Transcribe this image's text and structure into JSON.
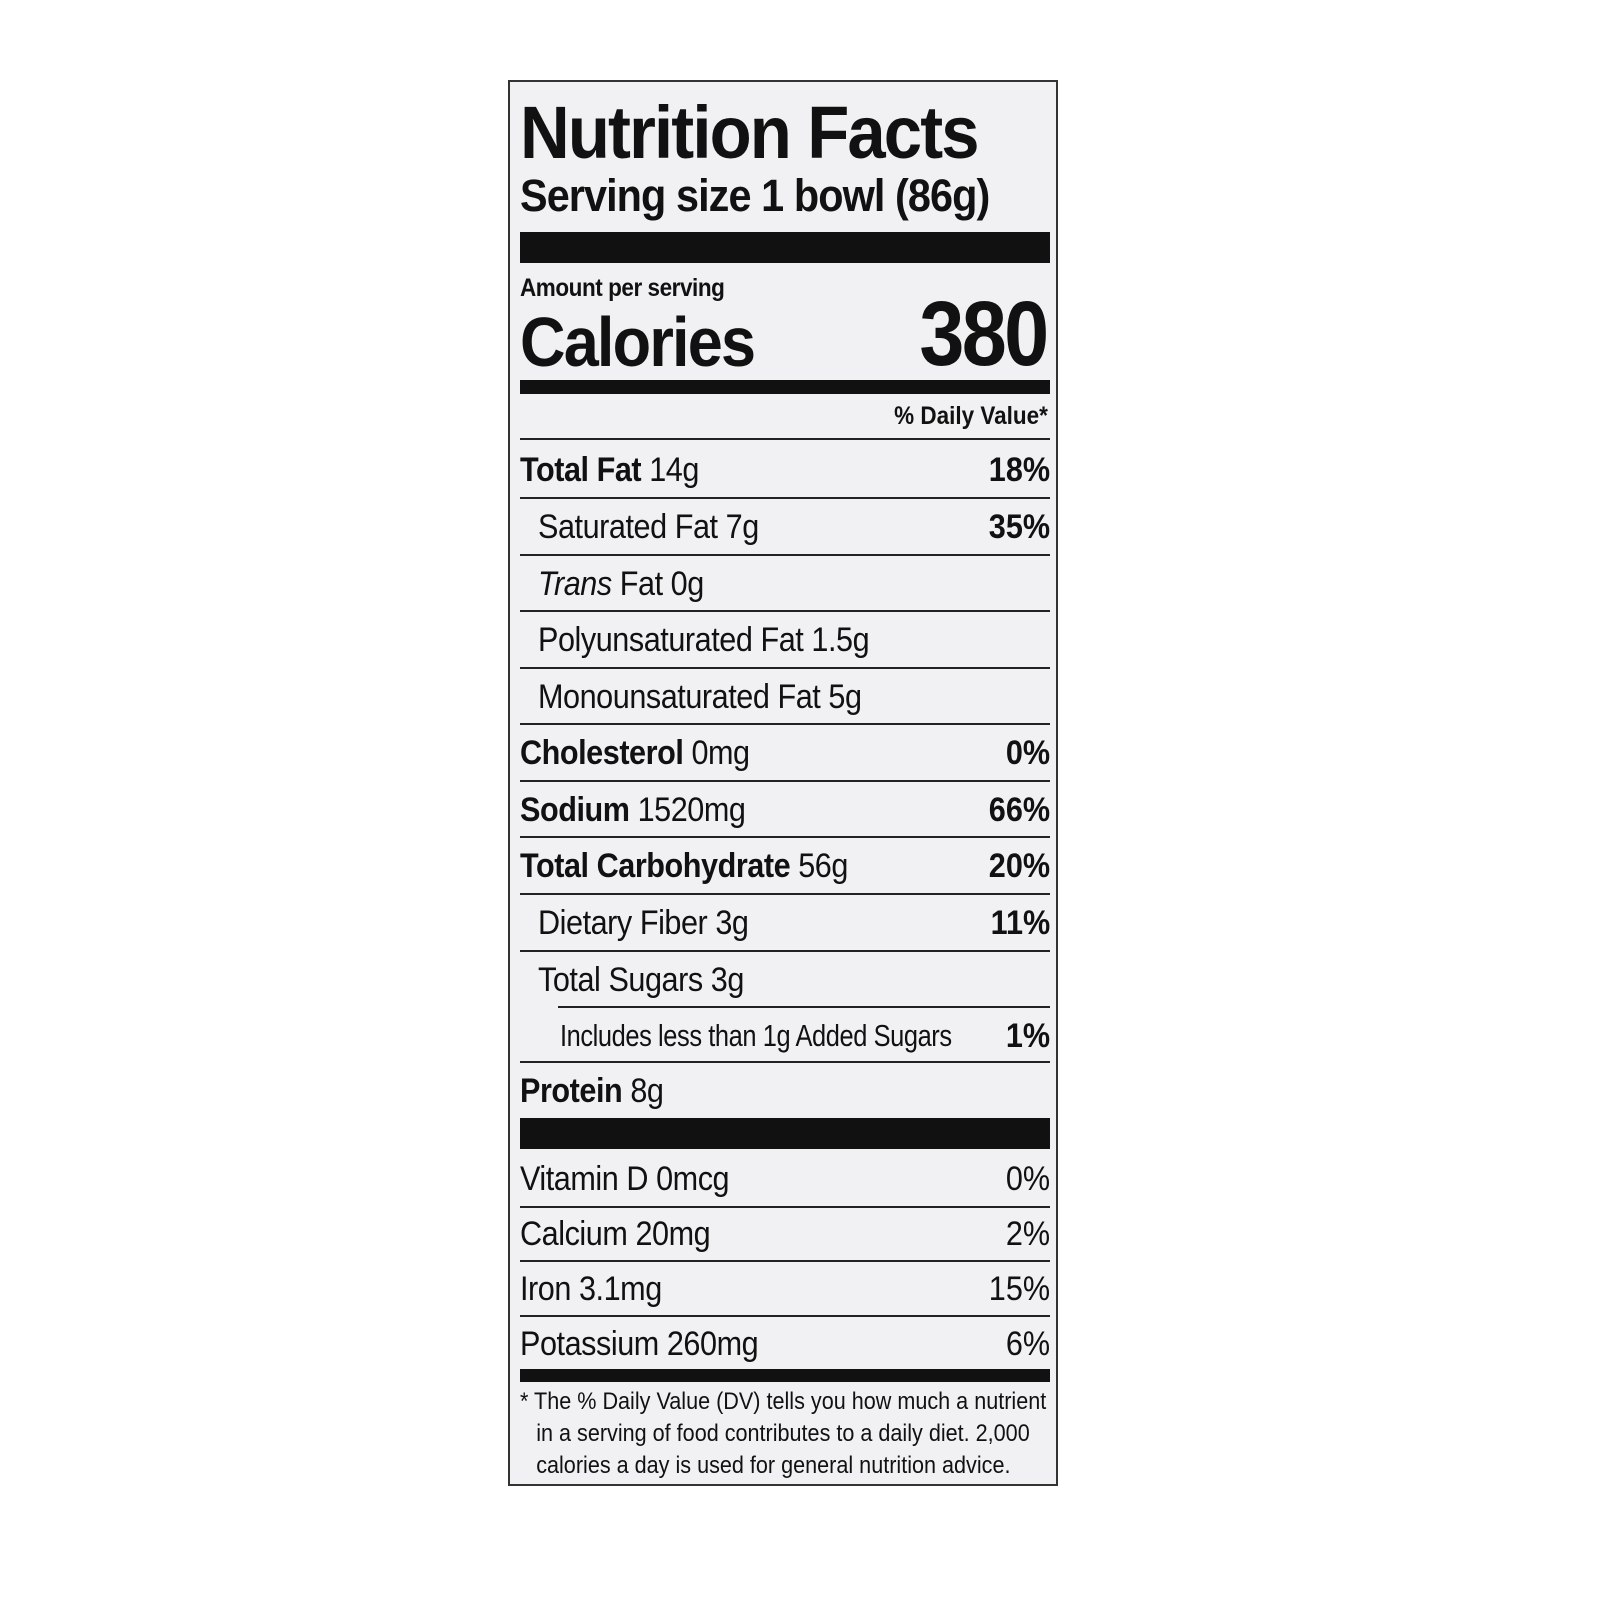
{
  "label": {
    "title": "Nutrition Facts",
    "serving_size": "Serving size 1 bowl (86g)",
    "amount_per_serving": "Amount per serving",
    "calories_label": "Calories",
    "calories_value": "380",
    "dv_header": "% Daily Value*",
    "nutrients": [
      {
        "name": "Total Fat",
        "amount": "14g",
        "dv": "18%"
      },
      {
        "name": "Saturated Fat",
        "amount": "7g",
        "dv": "35%"
      },
      {
        "name": "Trans",
        "name_suffix": "Fat",
        "amount": "0g",
        "dv": ""
      },
      {
        "name": "Polyunsaturated Fat",
        "amount": "1.5g",
        "dv": ""
      },
      {
        "name": "Monounsaturated Fat",
        "amount": "5g",
        "dv": ""
      },
      {
        "name": "Cholesterol",
        "amount": "0mg",
        "dv": "0%"
      },
      {
        "name": "Sodium",
        "amount": "1520mg",
        "dv": "66%"
      },
      {
        "name": "Total Carbohydrate",
        "amount": "56g",
        "dv": "20%"
      },
      {
        "name": "Dietary Fiber",
        "amount": "3g",
        "dv": "11%"
      },
      {
        "name": "Total Sugars",
        "amount": "3g",
        "dv": ""
      },
      {
        "name": "Includes less than 1g Added Sugars",
        "amount": "",
        "dv": "1%"
      },
      {
        "name": "Protein",
        "amount": "8g",
        "dv": ""
      }
    ],
    "vitamins": [
      {
        "name": "Vitamin D",
        "amount": "0mcg",
        "dv": "0%"
      },
      {
        "name": "Calcium",
        "amount": "20mg",
        "dv": "2%"
      },
      {
        "name": "Iron",
        "amount": "3.1mg",
        "dv": "15%"
      },
      {
        "name": "Potassium",
        "amount": "260mg",
        "dv": "6%"
      }
    ],
    "footnote": [
      "* The % Daily Value (DV) tells you how much a nutrient",
      "in a serving of food contributes to a daily diet. 2,000",
      "calories a day is used for general nutrition advice."
    ]
  }
}
